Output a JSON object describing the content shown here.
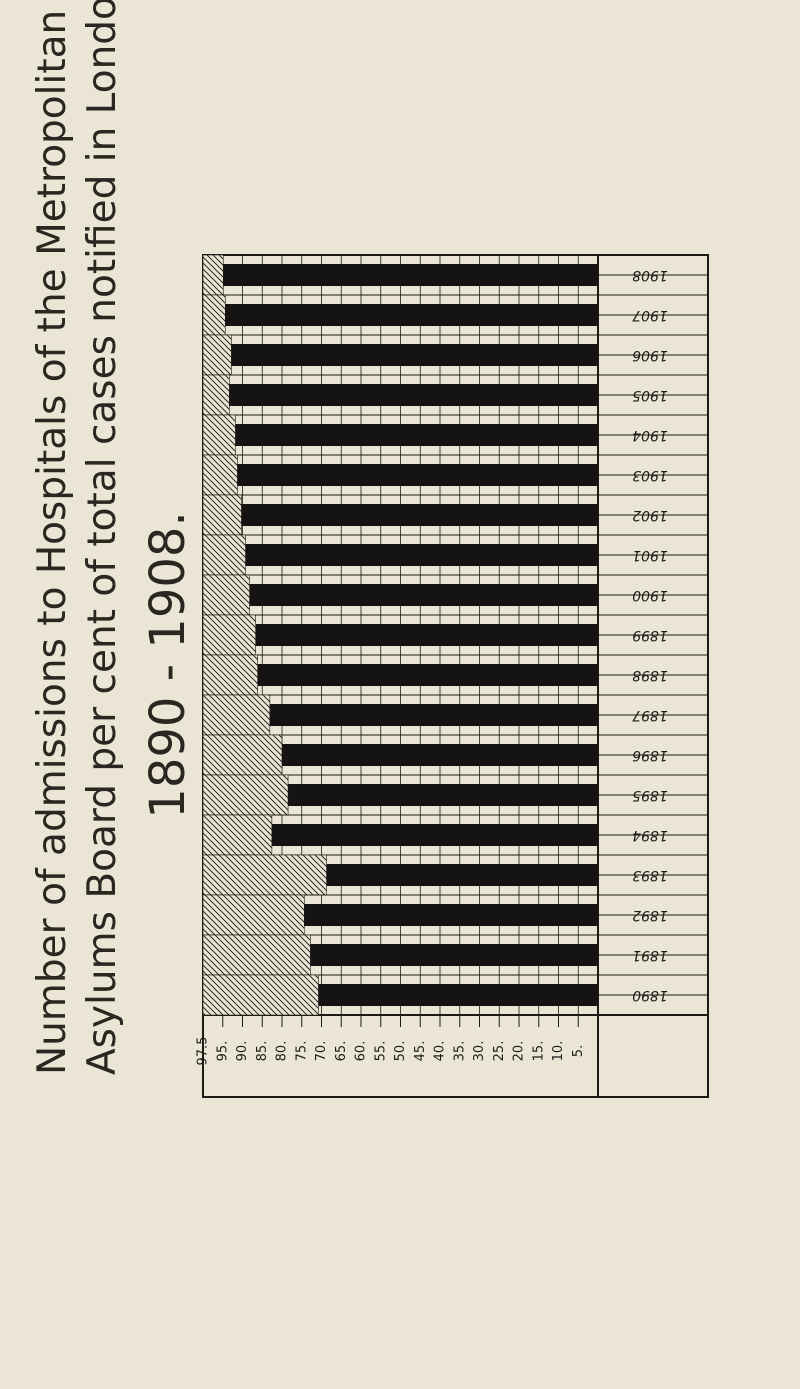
{
  "title": {
    "line1": "Number of admissions to Hospitals of the Metropolitan",
    "line2": "Asylums Board per cent of total cases notified in London.",
    "line3": "1890 - 1908."
  },
  "chart_data": {
    "type": "bar",
    "orientation": "horizontal",
    "categories": [
      "1908",
      "1907",
      "1906",
      "1905",
      "1904",
      "1903",
      "1902",
      "1901",
      "1900",
      "1899",
      "1898",
      "1897",
      "1896",
      "1895",
      "1894",
      "1893",
      "1892",
      "1891",
      "1890"
    ],
    "values": [
      92.5,
      92,
      90.5,
      91,
      89.5,
      89,
      88,
      87,
      86,
      84.5,
      84,
      81,
      78,
      76.5,
      80.5,
      67,
      72.5,
      71,
      69
    ],
    "xlim": [
      0,
      97.5
    ],
    "xticks": [
      "97.5",
      "95.",
      "90.",
      "85.",
      "80.",
      "75.",
      "70.",
      "65.",
      "60.",
      "55.",
      "50.",
      "45.",
      "40.",
      "35.",
      "30.",
      "25.",
      "20.",
      "15.",
      "10.",
      "5."
    ],
    "bar_color": "#161412",
    "remainder_pattern": "hatched",
    "grid": true
  }
}
